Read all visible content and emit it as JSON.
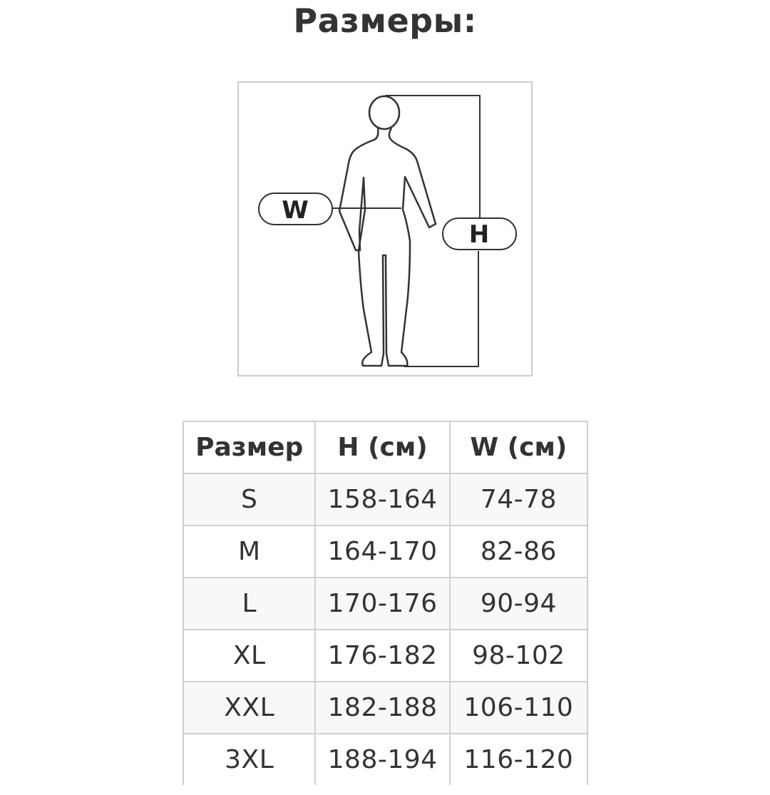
{
  "title": "Размеры:",
  "figure": {
    "waist_label": "W",
    "height_label": "H"
  },
  "table": {
    "headers": [
      "Размер",
      "H (см)",
      "W (см)"
    ],
    "rows": [
      [
        "S",
        "158-164",
        "74-78"
      ],
      [
        "M",
        "164-170",
        "82-86"
      ],
      [
        "L",
        "170-176",
        "90-94"
      ],
      [
        "XL",
        "176-182",
        "98-102"
      ],
      [
        "XXL",
        "182-188",
        "106-110"
      ],
      [
        "3XL",
        "188-194",
        "116-120"
      ]
    ]
  }
}
